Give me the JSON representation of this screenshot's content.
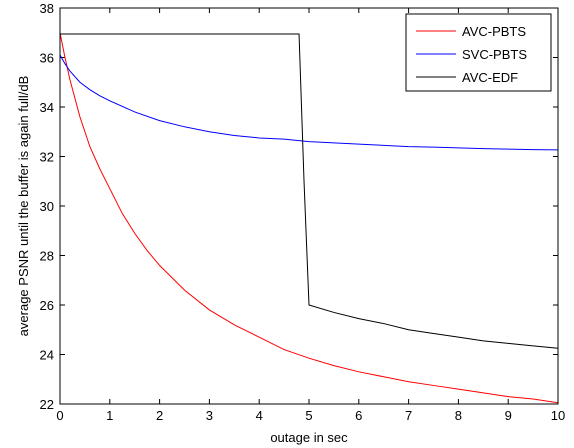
{
  "chart_data": {
    "type": "line",
    "title": "",
    "xlabel": "outage in sec",
    "ylabel": "average PSNR until the buffer is again full/dB",
    "xlim": [
      0,
      10
    ],
    "ylim": [
      22,
      38
    ],
    "xticks": [
      0,
      1,
      2,
      3,
      4,
      5,
      6,
      7,
      8,
      9,
      10
    ],
    "yticks": [
      22,
      24,
      26,
      28,
      30,
      32,
      34,
      36,
      38
    ],
    "grid": false,
    "legend_position": "top-right",
    "series": [
      {
        "name": "AVC-PBTS",
        "color": "#ff0000",
        "x": [
          0,
          0.1,
          0.2,
          0.4,
          0.6,
          0.8,
          1,
          1.25,
          1.5,
          1.75,
          2,
          2.5,
          3,
          3.5,
          4,
          4.5,
          5,
          5.5,
          6,
          6.5,
          7,
          7.5,
          8,
          8.5,
          9,
          9.5,
          10
        ],
        "y": [
          37.0,
          36.0,
          35.1,
          33.6,
          32.4,
          31.5,
          30.7,
          29.7,
          28.9,
          28.2,
          27.6,
          26.6,
          25.8,
          25.2,
          24.7,
          24.2,
          23.85,
          23.55,
          23.3,
          23.1,
          22.9,
          22.75,
          22.6,
          22.45,
          22.3,
          22.2,
          22.05
        ]
      },
      {
        "name": "SVC-PBTS",
        "color": "#0000ff",
        "x": [
          0,
          0.1,
          0.2,
          0.4,
          0.6,
          0.8,
          1,
          1.5,
          2,
          2.5,
          3,
          3.5,
          4,
          4.5,
          5,
          5.5,
          6,
          6.5,
          7,
          7.5,
          8,
          8.5,
          9,
          9.5,
          10
        ],
        "y": [
          36.1,
          35.75,
          35.45,
          35.0,
          34.7,
          34.45,
          34.25,
          33.8,
          33.45,
          33.2,
          33.0,
          32.85,
          32.75,
          32.7,
          32.6,
          32.55,
          32.5,
          32.45,
          32.4,
          32.38,
          32.35,
          32.32,
          32.3,
          32.28,
          32.27
        ]
      },
      {
        "name": "AVC-EDF",
        "color": "#000000",
        "x": [
          0,
          4.8,
          4.9,
          5.0,
          5.5,
          6,
          6.5,
          7,
          7.5,
          8,
          8.5,
          9,
          9.5,
          10
        ],
        "y": [
          36.95,
          36.95,
          31.0,
          26.0,
          25.7,
          25.45,
          25.25,
          25.0,
          24.85,
          24.7,
          24.55,
          24.45,
          24.35,
          24.25
        ]
      }
    ]
  }
}
